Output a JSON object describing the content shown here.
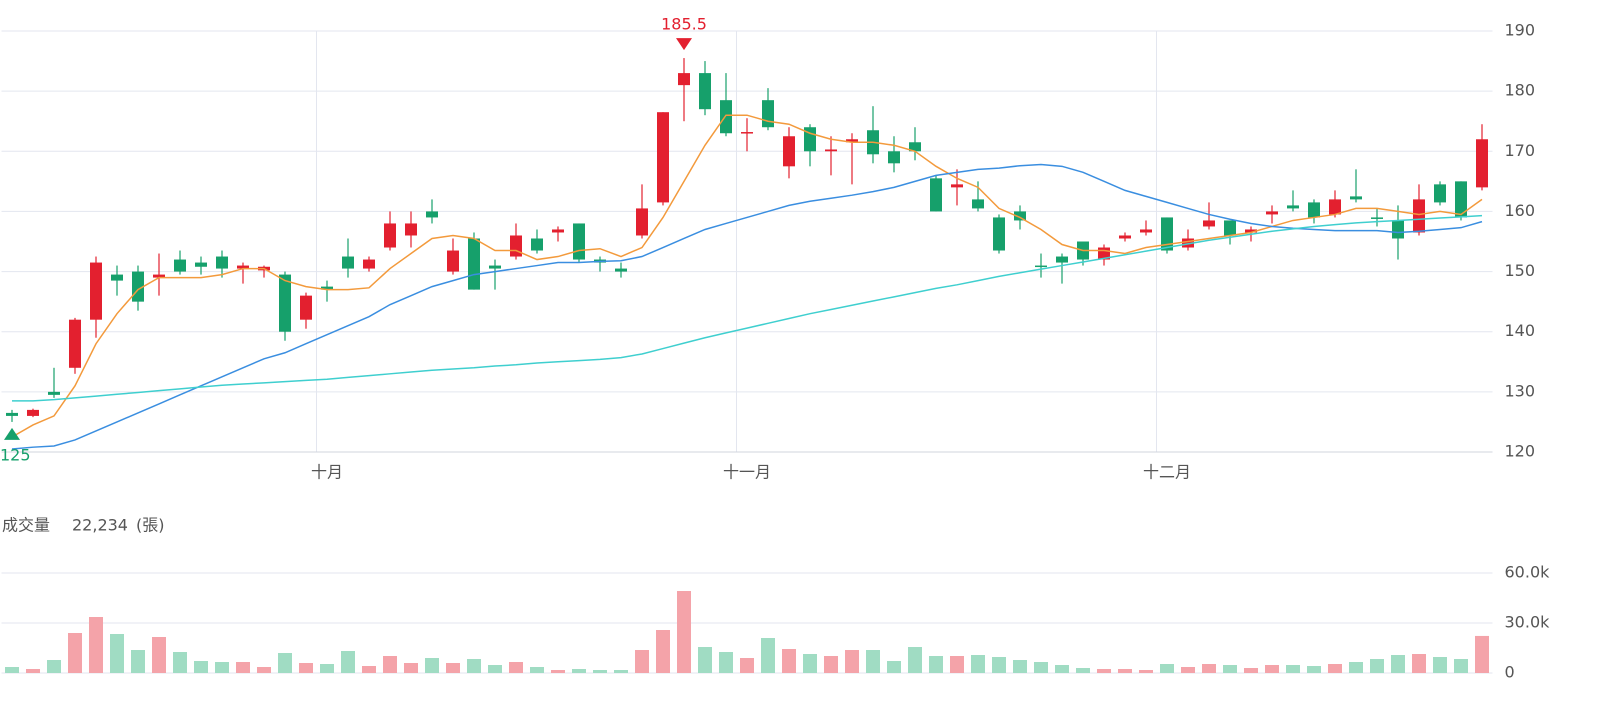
{
  "chart_data": [
    {
      "type": "candlestick",
      "categories": [
        null,
        null,
        null,
        null,
        null,
        null,
        null,
        null,
        null,
        null,
        null,
        null,
        null,
        null,
        null,
        "十月",
        null,
        null,
        null,
        null,
        null,
        null,
        null,
        null,
        null,
        null,
        null,
        null,
        null,
        null,
        null,
        null,
        null,
        null,
        null,
        "十一月",
        null,
        null,
        null,
        null,
        null,
        null,
        null,
        null,
        null,
        null,
        null,
        null,
        null,
        null,
        null,
        null,
        null,
        null,
        null,
        "十二月",
        null,
        null,
        null,
        null,
        null,
        null,
        null,
        null,
        null,
        null,
        null,
        null,
        null,
        null,
        null
      ],
      "open": [
        126.5,
        126,
        130,
        134,
        142,
        149.5,
        150,
        149,
        152,
        151.5,
        152.5,
        150.5,
        150.2,
        149.5,
        142,
        147.5,
        152.5,
        150.5,
        154,
        156,
        160,
        150,
        155.5,
        151,
        152.5,
        155.5,
        156.5,
        158,
        152,
        150.5,
        156,
        161.5,
        181,
        183,
        178.5,
        173,
        178.5,
        167.5,
        174,
        170,
        171.5,
        173.5,
        170,
        171.5,
        165.5,
        164,
        162,
        159,
        160,
        151,
        152.5,
        155,
        152,
        155.5,
        156.5,
        159,
        154,
        157.5,
        158.5,
        156.5,
        159.5,
        161,
        161.5,
        159.5,
        162.5,
        159,
        158.5,
        156.5,
        164.5,
        165,
        164
      ],
      "high": [
        127,
        127.2,
        134,
        142.3,
        152.5,
        151,
        151,
        153,
        153.5,
        152.5,
        153.5,
        151.5,
        151,
        150,
        146.5,
        148.5,
        155.5,
        152.5,
        160,
        160,
        162,
        155.5,
        156.5,
        152,
        158,
        157,
        157.5,
        158,
        152.5,
        151.5,
        164.5,
        176.5,
        185.5,
        185,
        183,
        175.5,
        180.5,
        174,
        174.5,
        172.5,
        173,
        177.5,
        172.5,
        174,
        166,
        167,
        165,
        159.5,
        161,
        153,
        153,
        155,
        154.5,
        156.5,
        158.5,
        159,
        157,
        161.5,
        158.5,
        157.5,
        161,
        163.5,
        162,
        163.5,
        167,
        160.5,
        161,
        164.5,
        165,
        165,
        174.5
      ],
      "low": [
        125,
        125.8,
        129,
        133,
        139,
        146,
        143.5,
        146,
        149.5,
        149.5,
        149,
        148,
        149,
        138.5,
        140.5,
        145,
        149,
        150,
        153.5,
        154,
        158,
        149.5,
        147,
        147,
        152,
        153,
        155,
        151.5,
        150,
        149,
        155.5,
        161,
        175,
        176,
        172.5,
        170,
        173.5,
        165.5,
        167.5,
        166,
        164.5,
        168,
        166.5,
        168.5,
        160,
        161,
        160,
        153,
        157,
        149,
        148,
        151,
        151,
        155,
        156,
        153,
        153.5,
        157,
        154.5,
        155,
        158,
        160,
        158,
        159,
        161.5,
        157.5,
        152,
        156,
        161,
        158.5,
        163.5
      ],
      "close": [
        126,
        127,
        129.5,
        142,
        151.5,
        148.5,
        145,
        149.5,
        150,
        150.8,
        150.5,
        151,
        150.8,
        140,
        146,
        147,
        150.5,
        152,
        158,
        158,
        159,
        153.5,
        147,
        150.5,
        156,
        153.5,
        157,
        152,
        151.5,
        150,
        160.5,
        176.5,
        183,
        177,
        173,
        173.2,
        174,
        172.5,
        170,
        170.3,
        172,
        169.5,
        168,
        170,
        160,
        164.5,
        160.5,
        153.5,
        158.5,
        150.8,
        151.5,
        152,
        154,
        156,
        157,
        153.5,
        155.5,
        158.5,
        156,
        157,
        160,
        160.5,
        159,
        162,
        162,
        158.8,
        155.5,
        162,
        161.5,
        159,
        172
      ],
      "up_color": "#e3202f",
      "down_color": "#16a06b",
      "lines": [
        {
          "color": "#f39a3c",
          "values": [
            122.5,
            124.5,
            126,
            131,
            138,
            143,
            147,
            149,
            149,
            149,
            149.5,
            150.5,
            150.5,
            148.5,
            147.5,
            147,
            147,
            147.3,
            150.5,
            153,
            155.5,
            156,
            155.5,
            153.5,
            153.5,
            152,
            152.5,
            153.5,
            153.8,
            152.5,
            154,
            159,
            165,
            171,
            176,
            176,
            175,
            174.5,
            173,
            172,
            171.5,
            171.5,
            171,
            170,
            167.5,
            165.5,
            164,
            160.5,
            159,
            157,
            154.5,
            153.5,
            153.5,
            153,
            154,
            154.5,
            155,
            155.5,
            156,
            156.5,
            157.5,
            158.5,
            159,
            159.5,
            160.5,
            160.5,
            160,
            159.5,
            160,
            159.5,
            162
          ]
        },
        {
          "color": "#3a8ee0",
          "values": [
            120.5,
            120.8,
            121,
            122,
            123.5,
            125,
            126.5,
            128,
            129.5,
            131,
            132.5,
            134,
            135.5,
            136.5,
            138,
            139.5,
            141,
            142.5,
            144.5,
            146,
            147.5,
            148.5,
            149.5,
            150,
            150.5,
            151,
            151.5,
            151.5,
            151.7,
            151.8,
            152.5,
            154,
            155.5,
            157,
            158,
            159,
            160,
            161,
            161.7,
            162.2,
            162.7,
            163.3,
            164,
            165,
            166,
            166.5,
            167,
            167.2,
            167.6,
            167.8,
            167.5,
            166.5,
            165,
            163.5,
            162.5,
            161.5,
            160.5,
            159.5,
            158.7,
            158,
            157.5,
            157.2,
            157,
            156.8,
            156.8,
            156.8,
            156.5,
            156.7,
            157,
            157.3,
            158.3
          ]
        },
        {
          "color": "#3fcfcf",
          "values": [
            128.5,
            128.5,
            128.7,
            129,
            129.3,
            129.6,
            129.9,
            130.2,
            130.5,
            130.8,
            131.1,
            131.3,
            131.5,
            131.7,
            131.9,
            132.1,
            132.4,
            132.7,
            133,
            133.3,
            133.6,
            133.8,
            134,
            134.3,
            134.5,
            134.8,
            135,
            135.2,
            135.4,
            135.7,
            136.3,
            137.2,
            138.1,
            139,
            139.8,
            140.6,
            141.4,
            142.2,
            143,
            143.7,
            144.4,
            145.1,
            145.8,
            146.5,
            147.2,
            147.8,
            148.5,
            149.2,
            149.8,
            150.4,
            151,
            151.6,
            152.2,
            152.8,
            153.4,
            154,
            154.6,
            155.2,
            155.7,
            156.2,
            156.7,
            157.1,
            157.5,
            157.8,
            158.1,
            158.3,
            158.5,
            158.7,
            158.9,
            159.1,
            159.3
          ]
        }
      ],
      "ylim": [
        120,
        190
      ],
      "yticks": [
        120,
        130,
        140,
        150,
        160,
        170,
        180,
        190
      ],
      "grid": true
    },
    {
      "type": "bar",
      "title": "成交量",
      "readout": {
        "value": 22234,
        "label": "22,234"
      },
      "unit": "(張)",
      "values": [
        3600,
        2400,
        7800,
        24000,
        33600,
        23400,
        13800,
        21600,
        12600,
        7200,
        6600,
        6600,
        3600,
        12000,
        6000,
        5400,
        13200,
        4200,
        10200,
        6000,
        9000,
        6000,
        8400,
        4800,
        6600,
        3600,
        1800,
        2400,
        1800,
        1800,
        13800,
        25800,
        49200,
        15600,
        12600,
        9000,
        21000,
        14400,
        11400,
        10200,
        13800,
        13800,
        7200,
        15600,
        10200,
        10200,
        10800,
        9600,
        7800,
        6600,
        4800,
        3000,
        2400,
        2400,
        1800,
        5400,
        3600,
        5400,
        4800,
        3000,
        4800,
        4800,
        4200,
        5400,
        6600,
        8400,
        10800,
        11400,
        9600,
        8400,
        22234
      ],
      "up_color": "#f4a3a9",
      "down_color": "#a0dcc3",
      "ylim": [
        0,
        60000
      ],
      "yticks": [
        0,
        {
          "value": 30000,
          "label": "30.0k"
        },
        {
          "value": 60000,
          "label": "60.0k"
        }
      ],
      "grid": true
    }
  ]
}
